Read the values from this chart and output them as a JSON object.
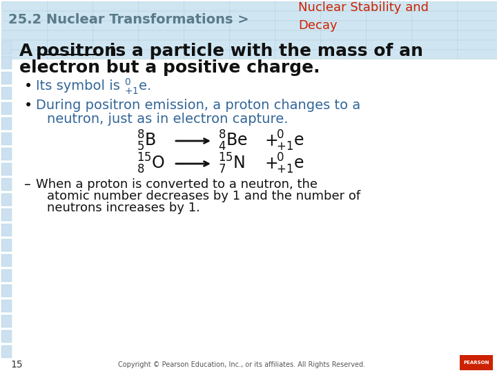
{
  "bg_color": "#ffffff",
  "header_text": "25.2 Nuclear Transformations >",
  "header_text_color": "#5a7a8a",
  "header_sub_text": "Nuclear Stability and\nDecay",
  "header_sub_color": "#cc2200",
  "footer_num": "15",
  "footer_copy": "Copyright © Pearson Education, Inc., or its affiliates. All Rights Reserved.",
  "main_font_size": 18,
  "bullet_font_size": 14,
  "eq_font_size": 17
}
